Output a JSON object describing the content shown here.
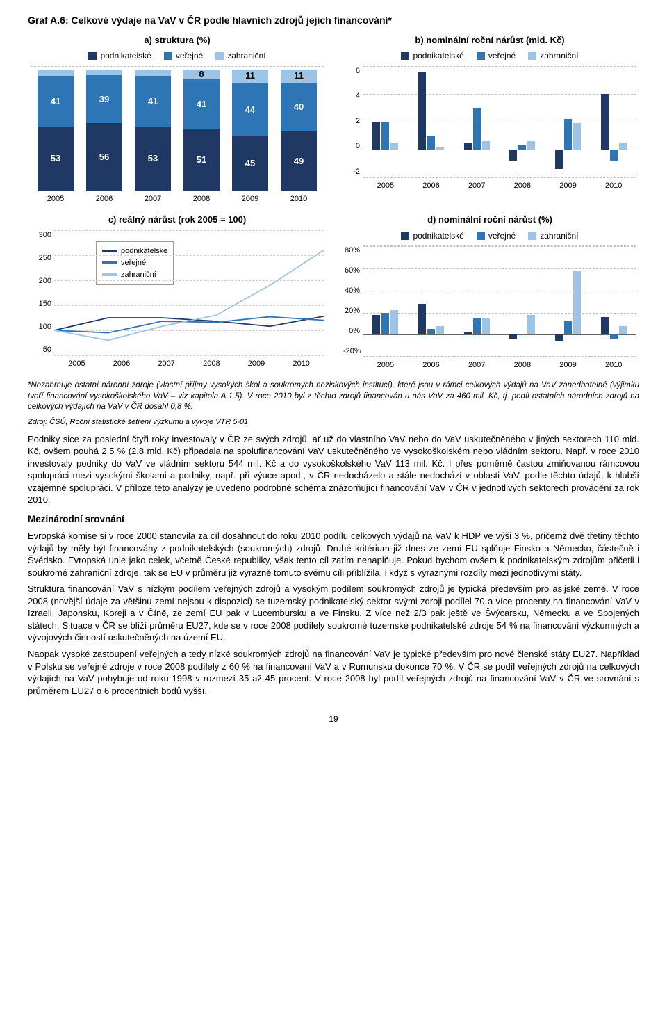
{
  "title": "Graf A.6: Celkové výdaje na VaV v ČR podle hlavních zdrojů jejich financování*",
  "colors": {
    "podnik": "#1f3864",
    "verej": "#2e75b6",
    "zahr": "#9dc3e6",
    "grid": "#bfbfbf"
  },
  "series_labels": {
    "podnik": "podnikatelské",
    "verej": "veřejné",
    "zahr": "zahraniční"
  },
  "years": [
    "2005",
    "2006",
    "2007",
    "2008",
    "2009",
    "2010"
  ],
  "chart_a": {
    "title": "a) struktura (%)",
    "data": [
      {
        "zahr": 6,
        "verej": 41,
        "podnik": 53
      },
      {
        "zahr": 5,
        "verej": 39,
        "podnik": 56
      },
      {
        "zahr": 6,
        "verej": 41,
        "podnik": 53
      },
      {
        "zahr": 8,
        "verej": 41,
        "podnik": 51
      },
      {
        "zahr": 11,
        "verej": 44,
        "podnik": 45
      },
      {
        "zahr": 11,
        "verej": 40,
        "podnik": 49
      }
    ]
  },
  "chart_b": {
    "title": "b) nominální roční nárůst (mld. Kč)",
    "ymin": -2,
    "ymax": 6,
    "ystep": 2,
    "data": [
      {
        "podnik": 2.0,
        "verej": 2.0,
        "zahr": 0.5
      },
      {
        "podnik": 5.6,
        "verej": 1.0,
        "zahr": 0.2
      },
      {
        "podnik": 0.5,
        "verej": 3.0,
        "zahr": 0.6
      },
      {
        "podnik": -0.8,
        "verej": 0.3,
        "zahr": 0.6
      },
      {
        "podnik": -1.4,
        "verej": 2.2,
        "zahr": 1.9
      },
      {
        "podnik": 4.0,
        "verej": -0.8,
        "zahr": 0.5
      }
    ]
  },
  "chart_c": {
    "title": "c) reálný nárůst (rok 2005 = 100)",
    "ymin": 50,
    "ymax": 300,
    "ystep": 50,
    "data": {
      "podnik": [
        100,
        125,
        125,
        118,
        108,
        128
      ],
      "verej": [
        100,
        95,
        118,
        116,
        127,
        120
      ],
      "zahr": [
        100,
        80,
        108,
        130,
        190,
        260
      ]
    }
  },
  "chart_d": {
    "title": "d) nominální roční nárůst (%)",
    "ymin": -20,
    "ymax": 80,
    "ystep": 20,
    "data": [
      {
        "podnik": 18,
        "verej": 20,
        "zahr": 22
      },
      {
        "podnik": 28,
        "verej": 5,
        "zahr": 8
      },
      {
        "podnik": 2,
        "verej": 15,
        "zahr": 15
      },
      {
        "podnik": -4,
        "verej": 1,
        "zahr": 18
      },
      {
        "podnik": -6,
        "verej": 12,
        "zahr": 58
      },
      {
        "podnik": 16,
        "verej": -4,
        "zahr": 8
      }
    ]
  },
  "footnote": "*Nezahrnuje ostatní národní zdroje (vlastní příjmy vysokých škol a soukromých neziskových institucí), které jsou v rámci celkových výdajů na VaV zanedbatelné (výjimku tvoří financování vysokoškolského VaV – viz kapitola A.1.5). V roce 2010 byl z těchto zdrojů financován u nás VaV za 460 mil. Kč, tj. podíl ostatních národních zdrojů na celkových výdajích na VaV v ČR dosáhl 0,8 %.",
  "source": "Zdroj: ČSÚ, Roční statistické šetření výzkumu a vývoje VTR 5-01",
  "para1": "Podniky sice za poslední čtyři roky investovaly v ČR ze svých zdrojů, ať už do vlastního VaV nebo do VaV uskutečněného v jiných sektorech 110 mld. Kč, ovšem pouhá 2,5 % (2,8 mld. Kč) připadala na spolufinancování VaV uskutečněného ve vysokoškolském nebo vládním sektoru. Např. v roce 2010 investovaly podniky do VaV ve vládním sektoru 544 mil. Kč a do vysokoškolského VaV 113 mil. Kč. I přes poměrně častou zmiňovanou rámcovou spolupráci mezi vysokými školami a podniky, např. při výuce apod., v ČR nedocházelo a stále nedochází v oblasti VaV, podle těchto údajů, k hlubší vzájemné spolupráci. V příloze této analýzy je uvedeno podrobné schéma znázorňující financování VaV v ČR v jednotlivých sektorech provádění za rok 2010.",
  "section_head": "Mezinárodní srovnání",
  "para2": "Evropská komise si v roce 2000 stanovila za cíl dosáhnout do roku 2010 podílu celkových výdajů na VaV k HDP ve výši 3 %, přičemž dvě třetiny těchto výdajů by měly být financovány z podnikatelských (soukromých) zdrojů. Druhé kritérium již dnes ze zemí EU splňuje Finsko a Německo, částečně i Švédsko. Evropská unie jako celek, včetně České republiky, však tento cíl zatím nenaplňuje. Pokud bychom ovšem k podnikatelským zdrojům přičetli i soukromé zahraniční zdroje, tak se EU v průměru již výrazně tomuto svému cíli přiblížila, i když s výraznými rozdíly mezi jednotlivými státy.",
  "para3": "Struktura financování VaV s nízkým podílem veřejných zdrojů a vysokým podílem soukromých zdrojů je typická především pro asijské země. V roce 2008 (novější údaje za většinu zemí nejsou k dispozici) se tuzemský podnikatelský sektor svými zdroji podílel 70 a více procenty na financování VaV v Izraeli, Japonsku, Koreji a v Číně, ze zemí EU pak v Lucembursku a ve Finsku. Z více než 2/3 pak ještě ve Švýcarsku, Německu a ve Spojených státech. Situace v ČR se blíží průměru EU27, kde se v roce 2008 podílely soukromé tuzemské podnikatelské zdroje 54 % na financování výzkumných a vývojových činností uskutečněných na území EU.",
  "para4": "Naopak vysoké zastoupení veřejných a tedy nízké soukromých zdrojů na financování VaV je typické především pro nové členské státy EU27. Například v Polsku se veřejné zdroje v roce 2008 podílely z 60 % na financování VaV a v Rumunsku dokonce 70 %. V ČR se podíl veřejných zdrojů na celkových výdajích na VaV pohybuje od roku 1998 v rozmezí 35 až 45 procent. V roce 2008 byl podíl veřejných zdrojů na financování VaV v ČR ve srovnání s průměrem EU27 o 6 procentních bodů vyšší.",
  "page_num": "19"
}
